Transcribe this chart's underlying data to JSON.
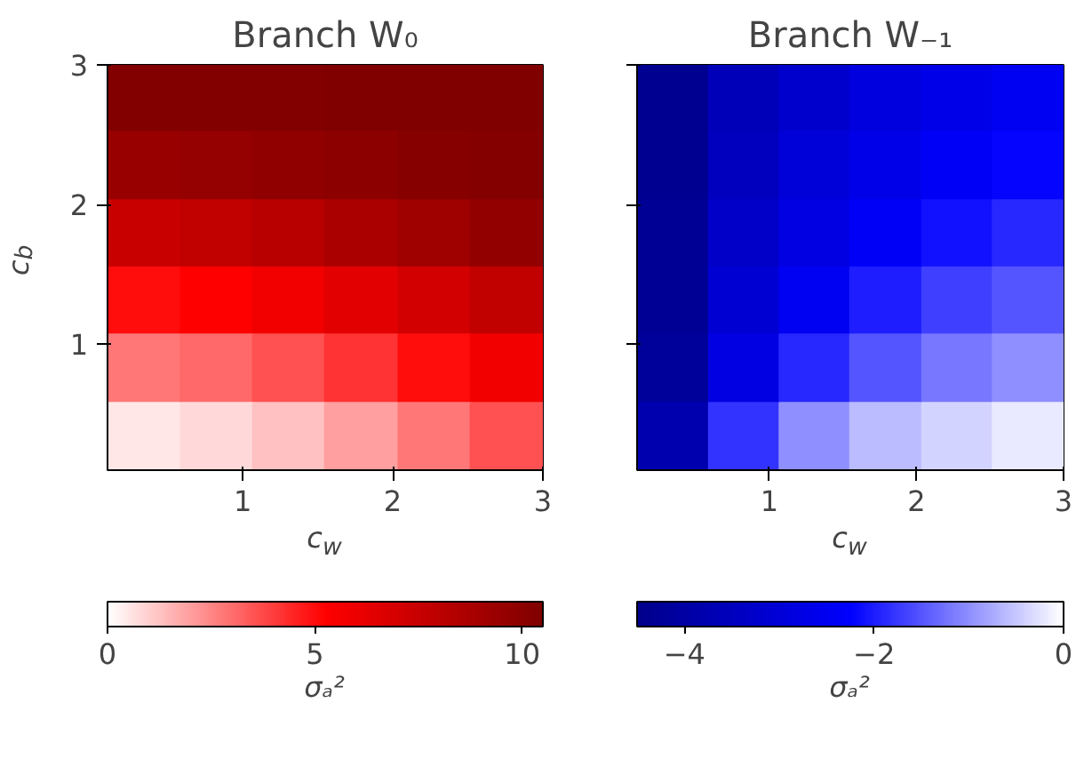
{
  "chart_data": [
    {
      "type": "heatmap",
      "title": "Branch W₀",
      "xlabel": "c$_{w}$",
      "ylabel": "c$_{b}$",
      "clabel": "σₐ²",
      "x": [
        0.34,
        0.83,
        1.31,
        1.79,
        2.28,
        2.76
      ],
      "y": [
        2.76,
        2.28,
        1.79,
        1.31,
        0.83,
        0.34
      ],
      "cells": [
        [
          10.4,
          10.4,
          10.4,
          10.5,
          10.5,
          10.5
        ],
        [
          9.5,
          9.6,
          9.8,
          10,
          10.2,
          10.3
        ],
        [
          7.5,
          7.8,
          8.2,
          8.7,
          9.2,
          9.7
        ],
        [
          5,
          5.3,
          5.8,
          6.4,
          7.1,
          7.8
        ],
        [
          2.8,
          3.1,
          3.6,
          4.2,
          5,
          5.8
        ],
        [
          0.5,
          0.8,
          1.3,
          2,
          2.8,
          3.6
        ]
      ],
      "colors": [
        "#ffffff",
        "#ff0000",
        "#800000"
      ],
      "xlim": [
        0.1,
        3
      ],
      "xticks": [
        1,
        2,
        3
      ],
      "ylim": [
        0.1,
        3
      ],
      "yticks": [
        1,
        2,
        3
      ],
      "clim": [
        0,
        10.5
      ],
      "cticks": [
        0,
        5,
        10
      ]
    },
    {
      "type": "heatmap",
      "title": "Branch W₋₁",
      "xlabel": "c$_{w}$",
      "clabel": "σₐ²",
      "x": [
        0.34,
        0.83,
        1.31,
        1.79,
        2.28,
        2.76
      ],
      "y": [
        2.76,
        2.28,
        1.79,
        1.31,
        0.83,
        0.34
      ],
      "cells": [
        [
          -4.4,
          -3.6,
          -3.2,
          -2.9,
          -2.7,
          -2.5
        ],
        [
          -4.4,
          -3.5,
          -3.0,
          -2.7,
          -2.4,
          -2.2
        ],
        [
          -4.3,
          -3.3,
          -2.8,
          -2.4,
          -2.1,
          -1.9
        ],
        [
          -4.3,
          -3.1,
          -2.5,
          -2.0,
          -1.7,
          -1.5
        ],
        [
          -4.2,
          -2.8,
          -1.9,
          -1.5,
          -1.2,
          -1.0
        ],
        [
          -3.8,
          -1.8,
          -1.0,
          -0.6,
          -0.4,
          -0.2
        ]
      ],
      "colors": [
        "#00008b",
        "#0000ff",
        "#ffffff"
      ],
      "xlim": [
        0.1,
        3
      ],
      "xticks": [
        1,
        2,
        3
      ],
      "ylim": [
        0.1,
        3
      ],
      "yticks": [
        1,
        2,
        3
      ],
      "tick_labels": "x",
      "clim": [
        -4.5,
        0
      ],
      "cticks": [
        {
          "value": -4,
          "label": "−4"
        },
        {
          "value": -2,
          "label": "−2"
        },
        0
      ]
    }
  ]
}
